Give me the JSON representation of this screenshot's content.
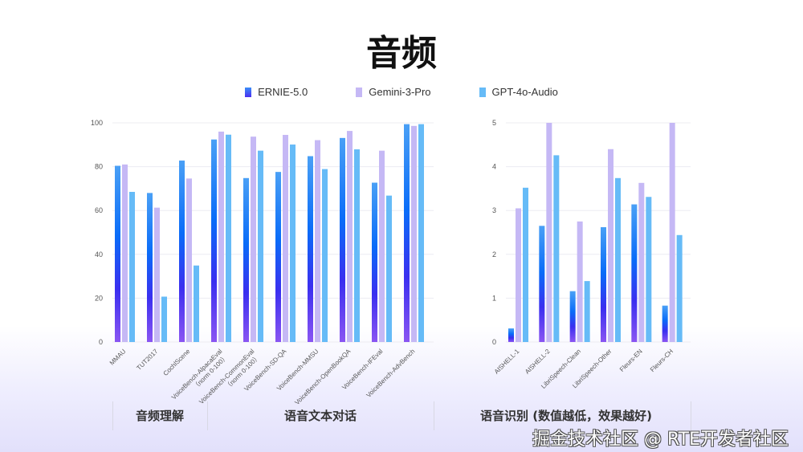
{
  "title": "音频",
  "legend": [
    {
      "name": "ERNIE-5.0",
      "color": "#2b5cf5"
    },
    {
      "name": "Gemini-3-Pro",
      "color": "#c5b8f5"
    },
    {
      "name": "GPT-4o-Audio",
      "color": "#66bbf7"
    }
  ],
  "chart_data": [
    {
      "type": "bar",
      "categories": [
        "MMAU",
        "TUT2017",
        "CochlScene",
        "VoiceBench-AlpacaEval\n（norm 0-100）",
        "VoiceBench-CommonEval\n（norm 0-100）",
        "VoiceBench-SD-QA",
        "VoiceBench-MMSU",
        "VoiceBench-OpenBookQA",
        "VoiceBench-IFEval",
        "VoiceBench-AdvBench"
      ],
      "series": [
        {
          "name": "ERNIE-5.0",
          "values": [
            80.4,
            68.0,
            82.8,
            92.4,
            74.8,
            77.6,
            84.8,
            93.1,
            72.7,
            99.4
          ]
        },
        {
          "name": "Gemini-3-Pro",
          "values": [
            81.0,
            61.3,
            74.6,
            96.0,
            93.7,
            94.5,
            92.1,
            96.3,
            87.3,
            98.6
          ]
        },
        {
          "name": "GPT-4o-Audio",
          "values": [
            68.5,
            20.7,
            34.9,
            94.6,
            87.3,
            90.1,
            78.9,
            87.9,
            66.8,
            99.4
          ]
        }
      ],
      "yticks": [
        "0",
        "20",
        "40",
        "60",
        "80",
        "100"
      ],
      "ylim": [
        0,
        100
      ],
      "grid": true
    },
    {
      "type": "bar",
      "categories": [
        "AISHELL-1",
        "AISHELL-2",
        "LibriSpeech-Clean",
        "LibriSpeech-Other",
        "Fleurs-EN",
        "Fleurs-CH"
      ],
      "series": [
        {
          "name": "ERNIE-5.0",
          "values": [
            0.31,
            2.65,
            1.16,
            2.62,
            3.14,
            0.83
          ]
        },
        {
          "name": "Gemini-3-Pro",
          "values": [
            3.05,
            5.0,
            2.75,
            4.4,
            3.63,
            5.0
          ]
        },
        {
          "name": "GPT-4o-Audio",
          "values": [
            3.52,
            4.26,
            1.39,
            3.74,
            3.31,
            2.44
          ]
        }
      ],
      "yticks": [
        "0",
        "1",
        "2",
        "3",
        "4",
        "5"
      ],
      "ylim": [
        0,
        5
      ],
      "grid": true
    }
  ],
  "groups": [
    "音频理解",
    "语音文本对话",
    "语音识别 (数值越低，效果越好)"
  ],
  "watermark": "掘金技术社区 @ RTE开发者社区"
}
